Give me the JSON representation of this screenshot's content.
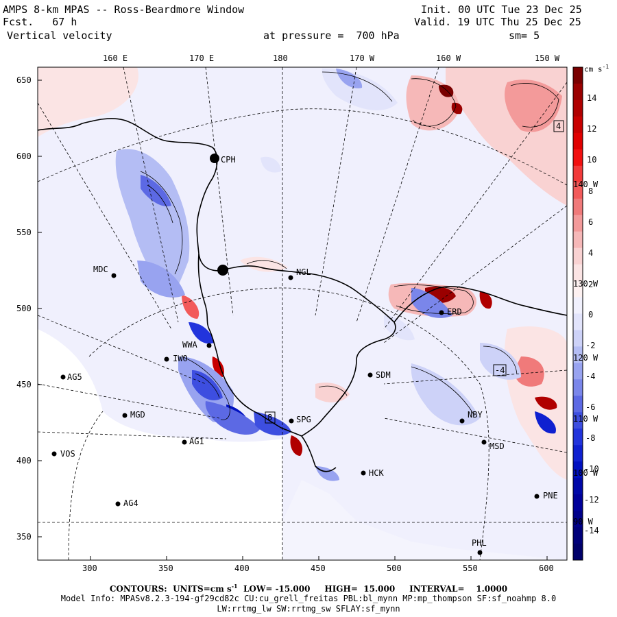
{
  "header": {
    "title": "AMPS 8-km MPAS -- Ross-Beardmore Window",
    "fcst": "Fcst.   67 h",
    "field": "Vertical velocity",
    "init": "Init. 00 UTC Tue 23 Dec 25",
    "valid": "Valid. 19 UTC Thu 25 Dec 25",
    "pressure": "at pressure =  700 hPa",
    "smoothing": "sm= 5"
  },
  "axes": {
    "x_ticks": [
      "300",
      "350",
      "400",
      "450",
      "500",
      "550",
      "600"
    ],
    "y_ticks": [
      "650",
      "600",
      "550",
      "500",
      "450",
      "400",
      "350"
    ],
    "lon_labels_top": [
      "160 E",
      "170 E",
      "180",
      "170 W",
      "160 W",
      "150 W"
    ],
    "lon_labels_right": [
      "140 W",
      "130 W",
      "120 W",
      "110 W",
      "100 W",
      "90 W"
    ]
  },
  "colorbar": {
    "units": "cm s",
    "units_exp": "-1",
    "tick_labels": [
      "14",
      "12",
      "10",
      "8",
      "6",
      "4",
      "2",
      "0",
      "-2",
      "-4",
      "-6",
      "-8",
      "-10",
      "-12",
      "-14"
    ],
    "colors_top_to_bottom": [
      "#7a0000",
      "#9a0000",
      "#b00000",
      "#c80000",
      "#e00000",
      "#f21010",
      "#f23a3a",
      "#f25a5a",
      "#f07a7a",
      "#f39a9a",
      "#f6b8b8",
      "#f9d2d2",
      "#fbe4e4",
      "#fdf1f1",
      "#f1f1fd",
      "#e2e4fb",
      "#cdd2f8",
      "#b4bdf4",
      "#98a3f0",
      "#7a86ea",
      "#5c69e4",
      "#3d4ee0",
      "#2234dc",
      "#0f20d0",
      "#0010c0",
      "#0008a8",
      "#00009a",
      "#00008a",
      "#00007a",
      "#00006a"
    ]
  },
  "stations": [
    {
      "id": "CPH"
    },
    {
      "id": "MDC"
    },
    {
      "id": "NGL"
    },
    {
      "id": "ERD"
    },
    {
      "id": "WWA"
    },
    {
      "id": "IWO"
    },
    {
      "id": "AG5"
    },
    {
      "id": "SDM"
    },
    {
      "id": "MGD"
    },
    {
      "id": "SPG"
    },
    {
      "id": "NBY"
    },
    {
      "id": "AG1"
    },
    {
      "id": "VOS"
    },
    {
      "id": "HCK"
    },
    {
      "id": "MSD"
    },
    {
      "id": "AG4"
    },
    {
      "id": "PNE"
    },
    {
      "id": "PHL"
    }
  ],
  "markers": [
    {
      "id": "4"
    },
    {
      "id": "8"
    },
    {
      "id": "-4"
    }
  ],
  "footer": {
    "contours": "CONTOURS:  UNITS=cm s",
    "units_exp": "-1",
    "rest": "  LOW= -15.000     HIGH=  15.000     INTERVAL=    1.0000",
    "model_info": "Model Info: MPASv8.2.3-194-gf29cd82c CU:cu_grell_freitas PBL:bl_mynn MP:mp_thompson SF:sf_noahmp 8.0",
    "model_info2": "LW:rrtmg_lw SW:rrtmg_sw SFLAY:sf_mynn"
  }
}
